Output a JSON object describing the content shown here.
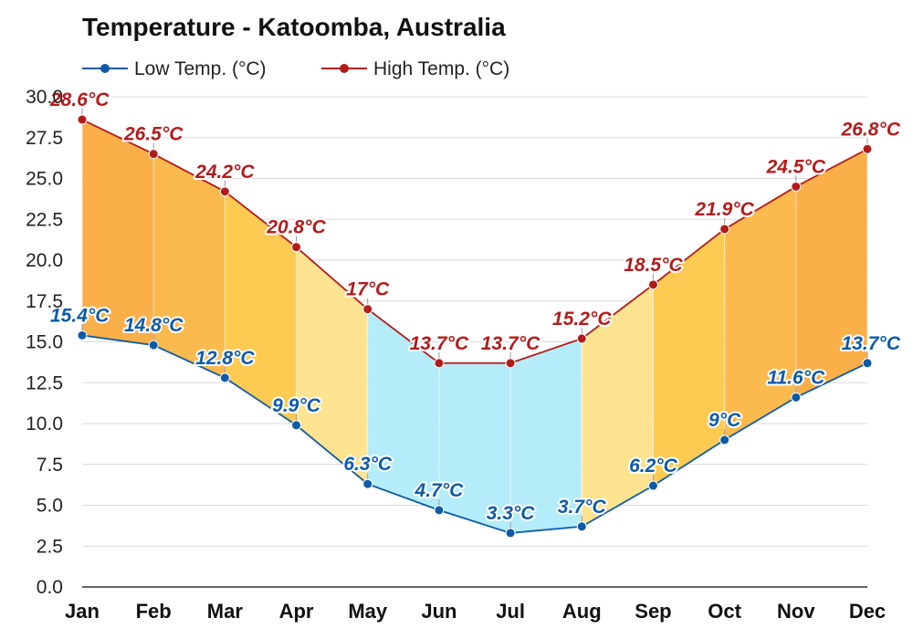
{
  "title": "Temperature - Katoomba, Australia",
  "colors": {
    "low": "#0d5aa7",
    "high": "#b31b1b",
    "grid": "#d9d9d9",
    "axis": "#333333"
  },
  "chart_data": {
    "type": "area",
    "categories": [
      "Jan",
      "Feb",
      "Mar",
      "Apr",
      "May",
      "Jun",
      "Jul",
      "Aug",
      "Sep",
      "Oct",
      "Nov",
      "Dec"
    ],
    "series": [
      {
        "name": "Low Temp. (°C)",
        "values": [
          15.4,
          14.8,
          12.8,
          9.9,
          6.3,
          4.7,
          3.3,
          3.7,
          6.2,
          9,
          11.6,
          13.7
        ],
        "labels": [
          "15.4°C",
          "14.8°C",
          "12.8°C",
          "9.9°C",
          "6.3°C",
          "4.7°C",
          "3.3°C",
          "3.7°C",
          "6.2°C",
          "9°C",
          "11.6°C",
          "13.7°C"
        ],
        "color": "#0d5aa7"
      },
      {
        "name": "High Temp. (°C)",
        "values": [
          28.6,
          26.5,
          24.2,
          20.8,
          17,
          13.7,
          13.7,
          15.2,
          18.5,
          21.9,
          24.5,
          26.8
        ],
        "labels": [
          "28.6°C",
          "26.5°C",
          "24.2°C",
          "20.8°C",
          "17°C",
          "13.7°C",
          "13.7°C",
          "15.2°C",
          "18.5°C",
          "21.9°C",
          "24.5°C",
          "26.8°C"
        ],
        "color": "#b31b1b"
      }
    ],
    "band_fill_colors": [
      "#fba83a",
      "#fbb43e",
      "#fdc742",
      "#fee187",
      "#aeeaf9",
      "#aeeaf9",
      "#aeeaf9",
      "#fee187",
      "#fdc742",
      "#fbb43e",
      "#fba83a"
    ],
    "ylim": [
      0,
      30
    ],
    "yticks": [
      0,
      2.5,
      5,
      7.5,
      10,
      12.5,
      15,
      17.5,
      20,
      22.5,
      25,
      27.5,
      30
    ],
    "ytick_labels": [
      "0.0",
      "2.5",
      "5.0",
      "7.5",
      "10.0",
      "12.5",
      "15.0",
      "17.5",
      "20.0",
      "22.5",
      "25.0",
      "27.5",
      "30.0"
    ],
    "grid": true,
    "legend_position": "top-left"
  }
}
